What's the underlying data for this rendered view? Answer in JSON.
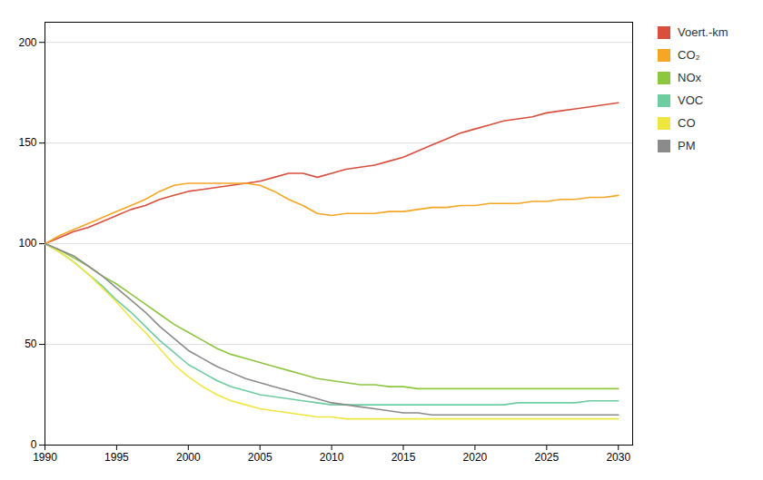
{
  "chart_data": {
    "type": "line",
    "x": [
      1990,
      1991,
      1992,
      1993,
      1994,
      1995,
      1996,
      1997,
      1998,
      1999,
      2000,
      2001,
      2002,
      2003,
      2004,
      2005,
      2006,
      2007,
      2008,
      2009,
      2010,
      2011,
      2012,
      2013,
      2014,
      2015,
      2016,
      2017,
      2018,
      2019,
      2020,
      2021,
      2022,
      2023,
      2024,
      2025,
      2026,
      2027,
      2028,
      2029,
      2030
    ],
    "series": [
      {
        "name": "Voert.-km",
        "color": "#d94f3d",
        "values": [
          100,
          103,
          106,
          108,
          111,
          114,
          117,
          119,
          122,
          124,
          126,
          127,
          128,
          129,
          130,
          131,
          133,
          135,
          135,
          133,
          135,
          137,
          138,
          139,
          141,
          143,
          146,
          149,
          152,
          155,
          157,
          159,
          161,
          162,
          163,
          165,
          166,
          167,
          168,
          169,
          170
        ]
      },
      {
        "name": "CO₂",
        "color": "#f5a623",
        "values": [
          100,
          104,
          107,
          110,
          113,
          116,
          119,
          122,
          126,
          129,
          130,
          130,
          130,
          130,
          130,
          129,
          126,
          122,
          119,
          115,
          114,
          115,
          115,
          115,
          116,
          116,
          117,
          118,
          118,
          119,
          119,
          120,
          120,
          120,
          121,
          121,
          122,
          122,
          123,
          123,
          124
        ]
      },
      {
        "name": "NOx",
        "color": "#8dc63f",
        "values": [
          100,
          97,
          93,
          89,
          84,
          80,
          75,
          70,
          65,
          60,
          56,
          52,
          48,
          45,
          43,
          41,
          39,
          37,
          35,
          33,
          32,
          31,
          30,
          30,
          29,
          29,
          28,
          28,
          28,
          28,
          28,
          28,
          28,
          28,
          28,
          28,
          28,
          28,
          28,
          28,
          28
        ]
      },
      {
        "name": "VOC",
        "color": "#6ecda0",
        "values": [
          100,
          96,
          91,
          85,
          79,
          72,
          66,
          59,
          52,
          46,
          40,
          36,
          32,
          29,
          27,
          25,
          24,
          23,
          22,
          21,
          20,
          20,
          20,
          20,
          20,
          20,
          20,
          20,
          20,
          20,
          20,
          20,
          20,
          21,
          21,
          21,
          21,
          21,
          22,
          22,
          22
        ]
      },
      {
        "name": "CO",
        "color": "#f0e640",
        "values": [
          100,
          96,
          91,
          85,
          78,
          71,
          63,
          56,
          48,
          40,
          34,
          29,
          25,
          22,
          20,
          18,
          17,
          16,
          15,
          14,
          14,
          13,
          13,
          13,
          13,
          13,
          13,
          13,
          13,
          13,
          13,
          13,
          13,
          13,
          13,
          13,
          13,
          13,
          13,
          13,
          13
        ]
      },
      {
        "name": "PM",
        "color": "#8b8b8b",
        "values": [
          100,
          97,
          94,
          89,
          84,
          78,
          72,
          66,
          59,
          53,
          47,
          43,
          39,
          36,
          33,
          31,
          29,
          27,
          25,
          23,
          21,
          20,
          19,
          18,
          17,
          16,
          16,
          15,
          15,
          15,
          15,
          15,
          15,
          15,
          15,
          15,
          15,
          15,
          15,
          15,
          15
        ]
      }
    ],
    "xlim": [
      1990,
      2031
    ],
    "xticks": [
      1990,
      1995,
      2000,
      2005,
      2010,
      2015,
      2020,
      2025,
      2030
    ],
    "ylim": [
      0,
      210
    ],
    "yticks": [
      0,
      50,
      100,
      150,
      200
    ],
    "grid": true,
    "legend": "right"
  }
}
